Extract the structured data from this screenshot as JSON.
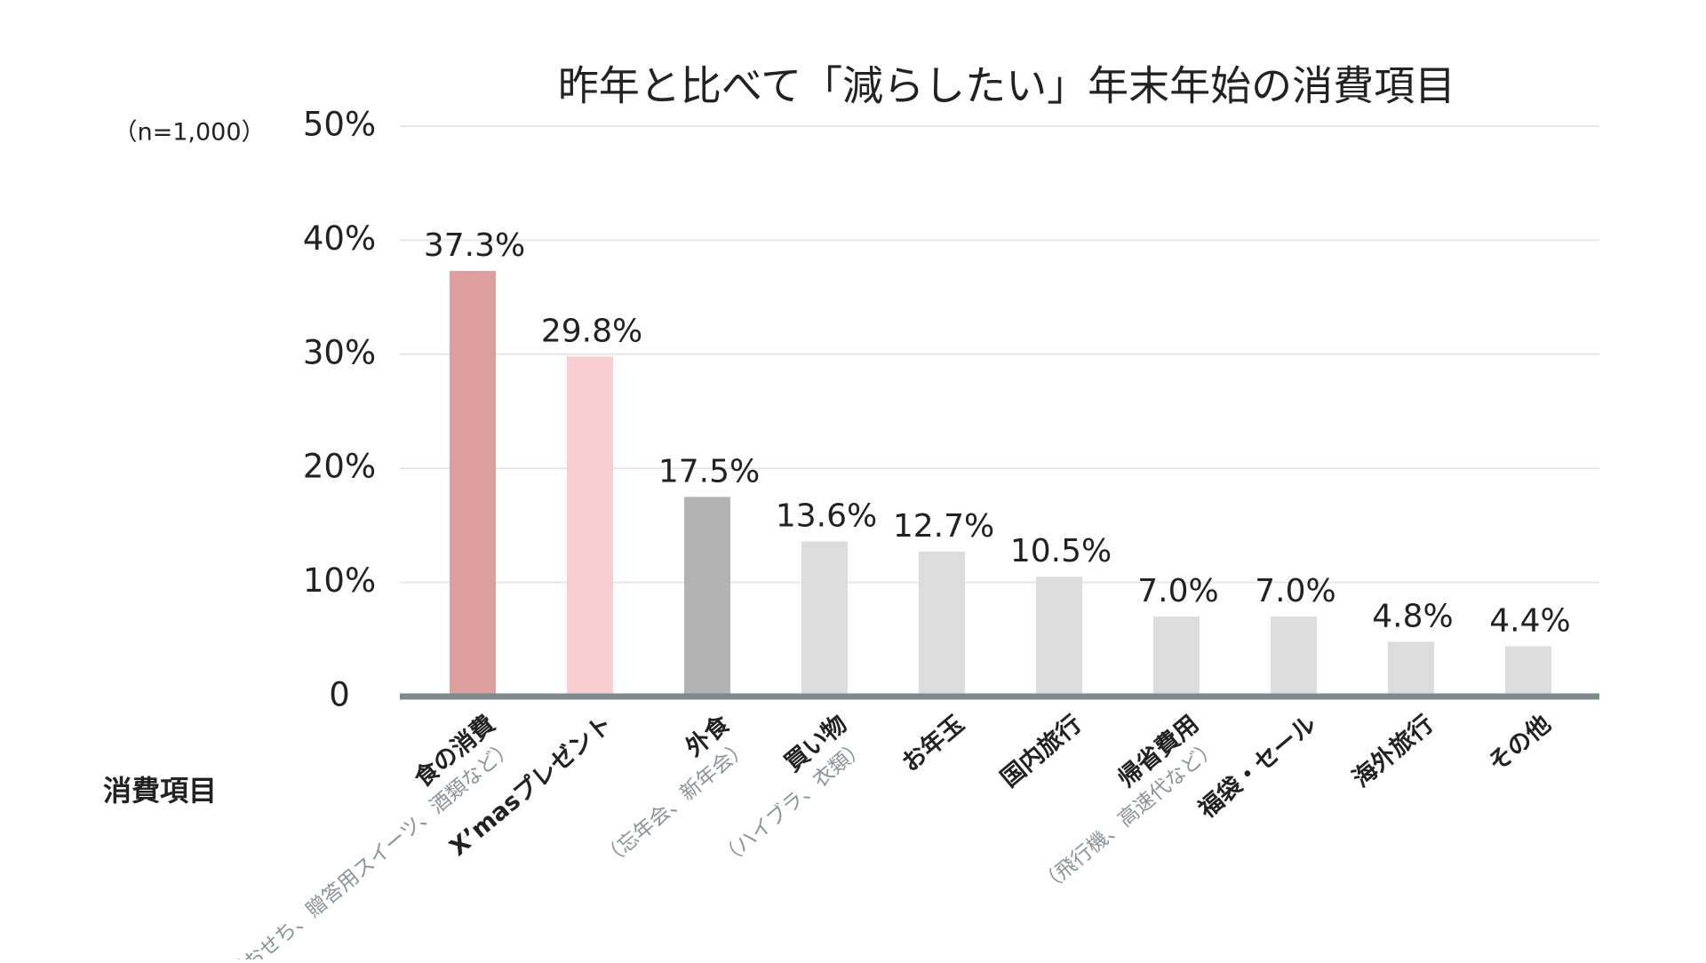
{
  "chart_data": {
    "type": "bar",
    "title": "昨年と比べて「減らしたい」年末年始の消費項目",
    "sample_note": "（n=1,000）",
    "x_label": "消費項目",
    "categories": [
      "食の消費",
      "X’masプレゼント",
      "外食",
      "買い物",
      "お年玉",
      "国内旅行",
      "帰省費用",
      "福袋・セール",
      "海外旅行",
      "その他"
    ],
    "sublabels": [
      "（おせち、贈答用スイーツ、酒類など）",
      null,
      "（忘年会、新年会）",
      "（ハイブラ、衣類）",
      null,
      null,
      "（飛行機、高速代など）",
      null,
      null,
      null
    ],
    "values": [
      37.3,
      29.8,
      17.5,
      13.6,
      12.7,
      10.5,
      7.0,
      7.0,
      4.8,
      4.4
    ],
    "value_labels": [
      "37.3%",
      "29.8%",
      "17.5%",
      "13.6%",
      "12.7%",
      "10.5%",
      "7.0%",
      "7.0%",
      "4.8%",
      "4.4%"
    ],
    "colors": [
      "#dd9e9e",
      "#f7cfd0",
      "#b3b3b3",
      "#dcdcdc",
      "#dcdcdc",
      "#dcdcdc",
      "#dcdcdc",
      "#dcdcdc",
      "#dcdcdc",
      "#dcdcdc"
    ],
    "ylim": [
      0,
      50
    ],
    "yticks": [
      0,
      {
        "value": 10,
        "label": "10%"
      },
      {
        "value": 20,
        "label": "20%"
      },
      {
        "value": 30,
        "label": "30%"
      },
      {
        "value": 40,
        "label": "40%"
      },
      {
        "value": 50,
        "label": "50%"
      }
    ],
    "grid": true
  }
}
